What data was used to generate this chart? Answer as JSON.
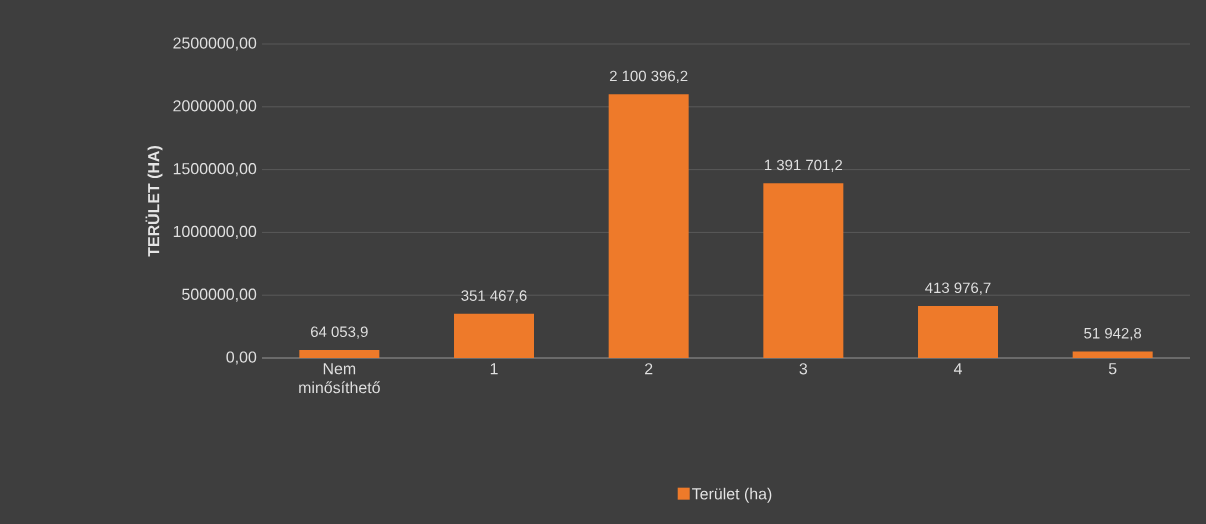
{
  "chart_data": {
    "type": "bar",
    "ylabel": "TERÜLET (HA)",
    "categories": [
      "Nem minősíthető",
      "1",
      "2",
      "3",
      "4",
      "5"
    ],
    "series": [
      {
        "name": "Terület (ha)",
        "color": "#ee7a2a",
        "values": [
          64053.9,
          351467.6,
          2100396.2,
          1391701.2,
          413976.7,
          51942.8
        ],
        "value_labels": [
          "64 053,9",
          "351 467,6",
          "2 100 396,2",
          "1 391 701,2",
          "413 976,7",
          "51 942,8"
        ]
      }
    ],
    "ylim": [
      0,
      2500000
    ],
    "yticks": [
      {
        "value": 0,
        "label": "0,00"
      },
      {
        "value": 500000,
        "label": "500000,00"
      },
      {
        "value": 1000000,
        "label": "1000000,00"
      },
      {
        "value": 1500000,
        "label": "1500000,00"
      },
      {
        "value": 2000000,
        "label": "2000000,00"
      },
      {
        "value": 2500000,
        "label": "2500000,00"
      }
    ],
    "grid": "y",
    "legend": "bottom"
  }
}
